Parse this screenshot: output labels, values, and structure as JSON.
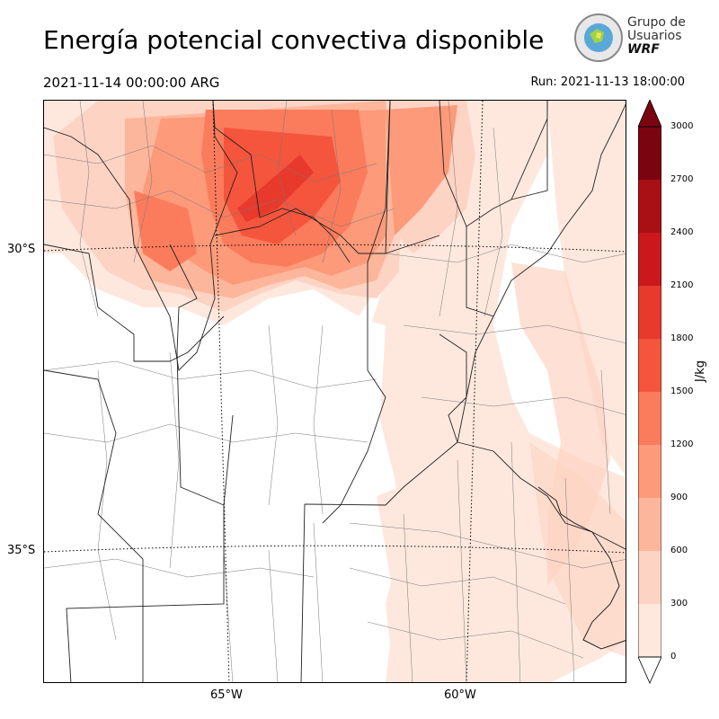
{
  "title": "Energía potencial convectiva disponible",
  "valid_time": "2021-11-14 00:00:00 ARG",
  "run_time": "Run: 2021-11-13 18:00:00",
  "logo": {
    "line1": "Grupo de",
    "line2": "Usuarios",
    "line3": "WRF"
  },
  "map": {
    "variable": "CAPE",
    "lat_labels": [
      "30°S",
      "35°S"
    ],
    "lon_labels": [
      "65°W",
      "60°W"
    ],
    "gridlines": "dotted",
    "colors": [
      "#fee8dd",
      "#fdd3c3",
      "#fcb69b",
      "#fc9a7a",
      "#fb7c5c",
      "#f5553c",
      "#e73a2d",
      "#cb181d",
      "#a81016",
      "#7a0510"
    ]
  },
  "colorbar": {
    "unit": "J/kg",
    "levels": [
      0,
      300,
      600,
      900,
      1200,
      1500,
      1800,
      2100,
      2400,
      2700,
      3000
    ],
    "extend": "both",
    "labels": [
      "0",
      "300",
      "600",
      "900",
      "1200",
      "1500",
      "1800",
      "2100",
      "2400",
      "2700",
      "3000"
    ]
  }
}
